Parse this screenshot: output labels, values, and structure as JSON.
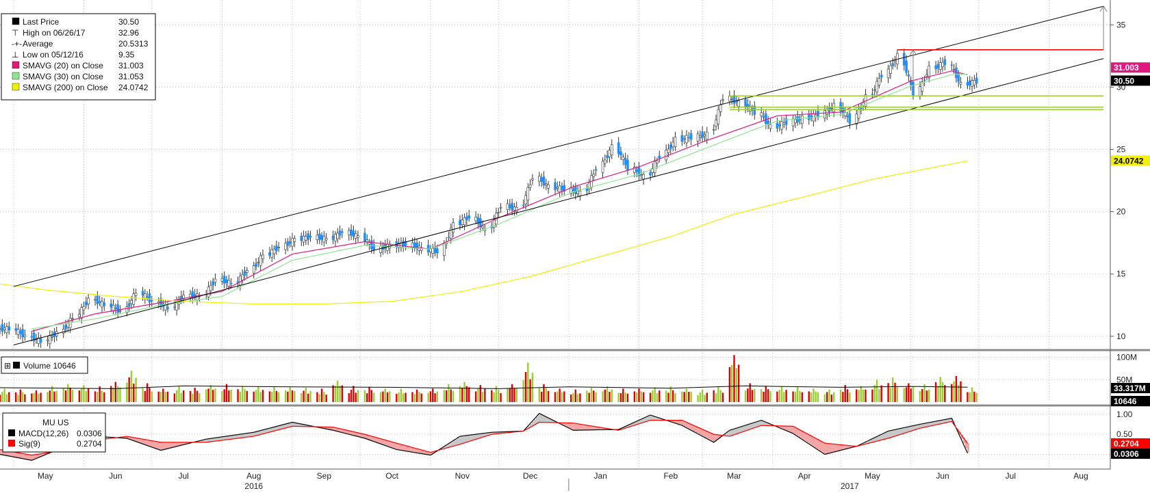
{
  "ticker_label": "MU US",
  "chart_data": [
    {
      "type": "candlestick",
      "panel": "price",
      "ylim": [
        9,
        37
      ],
      "y_ticks": [
        10,
        15,
        20,
        25,
        30,
        35
      ],
      "grid": true,
      "legend": {
        "placement": "top-left",
        "entries": [
          {
            "label": "Last Price",
            "value": "30.50",
            "color": "#000000"
          },
          {
            "label": "High on 06/26/17",
            "value": "32.96",
            "color": "#808080"
          },
          {
            "label": "Average",
            "value": "20.5313",
            "color": "#808080"
          },
          {
            "label": "Low on 05/12/16",
            "value": "9.35",
            "color": "#808080"
          },
          {
            "label": "SMAVG (20) on Close",
            "value": "31.003",
            "color": "#e0197d"
          },
          {
            "label": "SMAVG (30) on Close",
            "value": "31.053",
            "color": "#8fe68f"
          },
          {
            "label": "SMAVG (200) on Close",
            "value": "24.0742",
            "color": "#f0f000"
          }
        ]
      },
      "right_badges": [
        {
          "text": "31.003",
          "value": 31.003,
          "bg": "#e0197d",
          "fg": "#ffffff"
        },
        {
          "text": "30.50",
          "value": 30.5,
          "bg": "#000000",
          "fg": "#ffffff"
        },
        {
          "text": "24.0742",
          "value": 24.0742,
          "bg": "#f0f000",
          "fg": "#000000"
        }
      ],
      "series": [
        {
          "name": "Last Price",
          "role": "close",
          "color": "#000000",
          "x": [
            "2016-04-25",
            "2016-05-02",
            "2016-05-09",
            "2016-05-16",
            "2016-05-23",
            "2016-05-30",
            "2016-06-06",
            "2016-06-13",
            "2016-06-20",
            "2016-06-27",
            "2016-07-04",
            "2016-07-11",
            "2016-07-18",
            "2016-07-25",
            "2016-08-01",
            "2016-08-08",
            "2016-08-15",
            "2016-08-22",
            "2016-08-29",
            "2016-09-05",
            "2016-09-12",
            "2016-09-19",
            "2016-09-26",
            "2016-10-03",
            "2016-10-10",
            "2016-10-17",
            "2016-10-24",
            "2016-10-31",
            "2016-11-07",
            "2016-11-14",
            "2016-11-21",
            "2016-11-28",
            "2016-12-05",
            "2016-12-12",
            "2016-12-19",
            "2016-12-26",
            "2017-01-02",
            "2017-01-09",
            "2017-01-16",
            "2017-01-23",
            "2017-01-30",
            "2017-02-06",
            "2017-02-13",
            "2017-02-20",
            "2017-02-27",
            "2017-03-06",
            "2017-03-13",
            "2017-03-20",
            "2017-03-27",
            "2017-04-03",
            "2017-04-10",
            "2017-04-17",
            "2017-04-24",
            "2017-05-01",
            "2017-05-08",
            "2017-05-15",
            "2017-05-22",
            "2017-05-29",
            "2017-06-05",
            "2017-06-12",
            "2017-06-19",
            "2017-06-26"
          ],
          "values": [
            10.6,
            10.0,
            9.6,
            10.3,
            11.5,
            13.0,
            12.5,
            12.0,
            13.5,
            12.8,
            12.2,
            13.3,
            13.2,
            14.6,
            14.2,
            15.3,
            16.5,
            17.2,
            17.8,
            18.0,
            17.8,
            18.4,
            18.0,
            17.0,
            17.3,
            17.4,
            17.0,
            16.8,
            19.0,
            19.6,
            18.5,
            20.5,
            20.2,
            22.8,
            22.0,
            21.8,
            21.5,
            23.5,
            25.2,
            23.5,
            22.8,
            24.5,
            25.8,
            26.0,
            26.2,
            29.2,
            28.7,
            28.0,
            26.8,
            27.2,
            27.5,
            27.8,
            28.5,
            27.3,
            29.2,
            31.0,
            32.5,
            29.5,
            31.5,
            32.0,
            30.2,
            30.5
          ]
        },
        {
          "name": "SMAVG (20) on Close",
          "color": "#e0197d",
          "x": [
            "2016-05-09",
            "2016-06-06",
            "2016-07-05",
            "2016-08-01",
            "2016-09-01",
            "2016-10-03",
            "2016-11-01",
            "2016-12-01",
            "2017-01-03",
            "2017-02-01",
            "2017-03-01",
            "2017-04-03",
            "2017-05-01",
            "2017-06-01",
            "2017-06-19",
            "2017-06-26"
          ],
          "values": [
            10.4,
            11.8,
            12.7,
            13.6,
            16.6,
            17.6,
            17.0,
            19.5,
            22.0,
            23.6,
            25.6,
            27.7,
            28.0,
            30.5,
            31.3,
            31.0
          ]
        },
        {
          "name": "SMAVG (30) on Close",
          "color": "#8fe68f",
          "x": [
            "2016-05-09",
            "2016-06-06",
            "2016-07-05",
            "2016-08-01",
            "2016-09-01",
            "2016-10-03",
            "2016-11-01",
            "2016-12-01",
            "2017-01-03",
            "2017-02-01",
            "2017-03-01",
            "2017-04-03",
            "2017-05-01",
            "2017-06-01",
            "2017-06-19",
            "2017-06-26"
          ],
          "values": [
            10.6,
            11.4,
            12.5,
            13.2,
            16.1,
            17.3,
            17.0,
            19.0,
            21.6,
            23.0,
            25.0,
            27.3,
            27.8,
            30.1,
            31.0,
            31.05
          ]
        },
        {
          "name": "SMAVG (200) on Close",
          "color": "#f0f000",
          "x": [
            "2016-04-25",
            "2016-05-16",
            "2016-06-15",
            "2016-07-15",
            "2016-08-15",
            "2016-09-15",
            "2016-10-15",
            "2016-11-15",
            "2016-12-15",
            "2017-01-15",
            "2017-02-15",
            "2017-03-15",
            "2017-04-15",
            "2017-05-15",
            "2017-06-15",
            "2017-06-26"
          ],
          "values": [
            14.2,
            13.7,
            13.2,
            12.8,
            12.6,
            12.6,
            12.8,
            13.6,
            14.8,
            16.4,
            18.0,
            19.8,
            21.2,
            22.6,
            23.7,
            24.07
          ]
        }
      ],
      "reference_lines": [
        {
          "kind": "channel-upper",
          "color": "#000000",
          "x": [
            "2016-05-01",
            "2017-08-25"
          ],
          "y": [
            14.0,
            36.5
          ]
        },
        {
          "kind": "channel-lower",
          "color": "#000000",
          "x": [
            "2016-05-01",
            "2017-08-25"
          ],
          "y": [
            9.3,
            32.3
          ]
        },
        {
          "kind": "resistance",
          "color": "#ff0000",
          "x": [
            "2017-05-26",
            "2017-08-25"
          ],
          "y": [
            33.0,
            33.0
          ]
        },
        {
          "kind": "support",
          "color": "#9acd32",
          "x": [
            "2017-03-13",
            "2017-08-25"
          ],
          "y": [
            29.3,
            29.3
          ]
        },
        {
          "kind": "support",
          "color": "#9acd32",
          "x": [
            "2017-03-13",
            "2017-08-25"
          ],
          "y": [
            28.4,
            28.4
          ]
        },
        {
          "kind": "support",
          "color": "#9acd32",
          "x": [
            "2017-03-13",
            "2017-08-25"
          ],
          "y": [
            28.2,
            28.2
          ]
        },
        {
          "kind": "arrow",
          "color": "#808080",
          "x": [
            "2017-08-25",
            "2017-08-25"
          ],
          "y": [
            33.0,
            36.5
          ]
        },
        {
          "kind": "arrow",
          "color": "#808080",
          "x": [
            "2017-06-02",
            "2017-06-02"
          ],
          "y": [
            29.5,
            33.0
          ]
        }
      ]
    },
    {
      "type": "bar",
      "panel": "volume",
      "title": "Volume 10646",
      "y_ticks": [
        "100M",
        "50M"
      ],
      "ylim": [
        0,
        110
      ],
      "right_badges": [
        {
          "text": "33.317M",
          "bg": "#000000",
          "fg": "#ffffff"
        },
        {
          "text": "10646",
          "bg": "#000000",
          "fg": "#ffffff"
        }
      ],
      "series": [
        {
          "name": "Volume",
          "up_color": "#9acd32",
          "down_color": "#e00000",
          "x": [
            "2016-04-25",
            "2016-05-02",
            "2016-05-09",
            "2016-05-16",
            "2016-05-23",
            "2016-05-30",
            "2016-06-06",
            "2016-06-13",
            "2016-06-20",
            "2016-06-27",
            "2016-07-04",
            "2016-07-11",
            "2016-07-18",
            "2016-07-25",
            "2016-08-01",
            "2016-08-08",
            "2016-08-15",
            "2016-08-22",
            "2016-08-29",
            "2016-09-05",
            "2016-09-12",
            "2016-09-19",
            "2016-09-26",
            "2016-10-03",
            "2016-10-10",
            "2016-10-17",
            "2016-10-24",
            "2016-10-31",
            "2016-11-07",
            "2016-11-14",
            "2016-11-21",
            "2016-11-28",
            "2016-12-05",
            "2016-12-12",
            "2016-12-19",
            "2016-12-26",
            "2017-01-02",
            "2017-01-09",
            "2017-01-16",
            "2017-01-23",
            "2017-01-30",
            "2017-02-06",
            "2017-02-13",
            "2017-02-20",
            "2017-02-27",
            "2017-03-06",
            "2017-03-13",
            "2017-03-20",
            "2017-03-27",
            "2017-04-03",
            "2017-04-10",
            "2017-04-17",
            "2017-04-24",
            "2017-05-01",
            "2017-05-08",
            "2017-05-15",
            "2017-05-22",
            "2017-05-29",
            "2017-06-05",
            "2017-06-12",
            "2017-06-19",
            "2017-06-26"
          ],
          "values": [
            30,
            28,
            26,
            36,
            40,
            38,
            35,
            45,
            70,
            42,
            30,
            35,
            32,
            38,
            40,
            36,
            34,
            35,
            33,
            32,
            30,
            48,
            36,
            34,
            30,
            30,
            28,
            30,
            40,
            45,
            38,
            36,
            40,
            88,
            40,
            30,
            28,
            32,
            35,
            30,
            30,
            33,
            35,
            30,
            28,
            34,
            105,
            42,
            36,
            34,
            35,
            30,
            28,
            38,
            36,
            50,
            55,
            42,
            40,
            56,
            58,
            33
          ],
          "up": [
            true,
            false,
            false,
            true,
            true,
            true,
            false,
            false,
            true,
            false,
            false,
            true,
            false,
            true,
            false,
            true,
            true,
            true,
            true,
            true,
            false,
            true,
            false,
            false,
            true,
            true,
            false,
            false,
            true,
            true,
            false,
            true,
            false,
            true,
            false,
            false,
            false,
            true,
            true,
            false,
            false,
            true,
            true,
            true,
            true,
            true,
            false,
            false,
            false,
            true,
            true,
            true,
            true,
            false,
            true,
            true,
            true,
            false,
            true,
            true,
            false,
            true
          ]
        },
        {
          "name": "Volume MA",
          "color": "#000000",
          "x": [
            "2016-04-25",
            "2016-06-15",
            "2016-07-15",
            "2016-09-01",
            "2016-10-15",
            "2016-12-01",
            "2017-01-01",
            "2017-02-15",
            "2017-03-20",
            "2017-05-01",
            "2017-06-01",
            "2017-06-26"
          ],
          "values": [
            32,
            30,
            36,
            34,
            33,
            30,
            34,
            31,
            36,
            33,
            35,
            33.3
          ]
        }
      ]
    },
    {
      "type": "line",
      "panel": "macd",
      "ylim": [
        -0.35,
        1.15
      ],
      "y_ticks": [
        1.0,
        0.5
      ],
      "legend": {
        "placement": "top-left",
        "entries": [
          {
            "label": "MACD(12,26)",
            "value": "0.0306",
            "color": "#000000"
          },
          {
            "label": "Sig(9)",
            "value": "0.2704",
            "color": "#ff0000"
          }
        ]
      },
      "right_badges": [
        {
          "text": "0.2704",
          "value": 0.2704,
          "bg": "#ff0000",
          "fg": "#ffffff"
        },
        {
          "text": "0.0306",
          "value": 0.0306,
          "bg": "#000000",
          "fg": "#ffffff"
        }
      ],
      "series": [
        {
          "name": "MACD(12,26)",
          "color": "#000000",
          "x": [
            "2016-04-25",
            "2016-05-09",
            "2016-05-23",
            "2016-06-06",
            "2016-06-20",
            "2016-07-05",
            "2016-07-25",
            "2016-08-15",
            "2016-09-01",
            "2016-09-19",
            "2016-10-03",
            "2016-10-17",
            "2016-11-01",
            "2016-11-14",
            "2016-11-28",
            "2016-12-12",
            "2016-12-19",
            "2017-01-03",
            "2017-01-23",
            "2017-02-06",
            "2017-02-20",
            "2017-03-06",
            "2017-03-13",
            "2017-03-27",
            "2017-04-10",
            "2017-04-24",
            "2017-05-08",
            "2017-05-22",
            "2017-06-05",
            "2017-06-19",
            "2017-06-26"
          ],
          "values": [
            0.0,
            -0.15,
            0.18,
            0.45,
            0.4,
            0.1,
            0.38,
            0.55,
            0.8,
            0.6,
            0.4,
            0.12,
            -0.02,
            0.45,
            0.55,
            0.58,
            1.02,
            0.6,
            0.62,
            0.98,
            0.72,
            0.3,
            0.6,
            0.85,
            0.52,
            0.0,
            0.2,
            0.58,
            0.75,
            0.9,
            0.03
          ]
        },
        {
          "name": "Sig(9)",
          "color": "#ff0000",
          "x": [
            "2016-04-25",
            "2016-05-09",
            "2016-05-23",
            "2016-06-06",
            "2016-06-20",
            "2016-07-05",
            "2016-07-25",
            "2016-08-15",
            "2016-09-01",
            "2016-09-19",
            "2016-10-03",
            "2016-10-17",
            "2016-11-01",
            "2016-11-14",
            "2016-11-28",
            "2016-12-12",
            "2016-12-19",
            "2017-01-03",
            "2017-01-23",
            "2017-02-06",
            "2017-02-20",
            "2017-03-06",
            "2017-03-13",
            "2017-03-27",
            "2017-04-10",
            "2017-04-24",
            "2017-05-08",
            "2017-05-22",
            "2017-06-05",
            "2017-06-19",
            "2017-06-26"
          ],
          "values": [
            0.12,
            -0.02,
            0.1,
            0.35,
            0.45,
            0.3,
            0.3,
            0.45,
            0.7,
            0.68,
            0.5,
            0.28,
            0.05,
            0.25,
            0.5,
            0.58,
            0.8,
            0.78,
            0.6,
            0.85,
            0.85,
            0.5,
            0.45,
            0.72,
            0.7,
            0.28,
            0.2,
            0.4,
            0.65,
            0.82,
            0.27
          ]
        }
      ]
    }
  ],
  "x_axis": {
    "month_labels": [
      {
        "label": "May",
        "date": "2016-05-15"
      },
      {
        "label": "Jun",
        "date": "2016-06-15"
      },
      {
        "label": "Jul",
        "date": "2016-07-15"
      },
      {
        "label": "Aug",
        "date": "2016-08-15"
      },
      {
        "label": "Sep",
        "date": "2016-09-15"
      },
      {
        "label": "Oct",
        "date": "2016-10-15"
      },
      {
        "label": "Nov",
        "date": "2016-11-15"
      },
      {
        "label": "Dec",
        "date": "2016-12-15"
      },
      {
        "label": "Jan",
        "date": "2017-01-15"
      },
      {
        "label": "Feb",
        "date": "2017-02-15"
      },
      {
        "label": "Mar",
        "date": "2017-03-15"
      },
      {
        "label": "Apr",
        "date": "2017-04-15"
      },
      {
        "label": "May",
        "date": "2017-05-15"
      },
      {
        "label": "Jun",
        "date": "2017-06-15"
      },
      {
        "label": "Jul",
        "date": "2017-07-15"
      },
      {
        "label": "Aug",
        "date": "2017-08-15"
      }
    ],
    "year_labels": [
      {
        "label": "2016",
        "date": "2016-08-15"
      },
      {
        "label": "2017",
        "date": "2017-05-05"
      }
    ],
    "year_divider": "2017-01-01"
  }
}
